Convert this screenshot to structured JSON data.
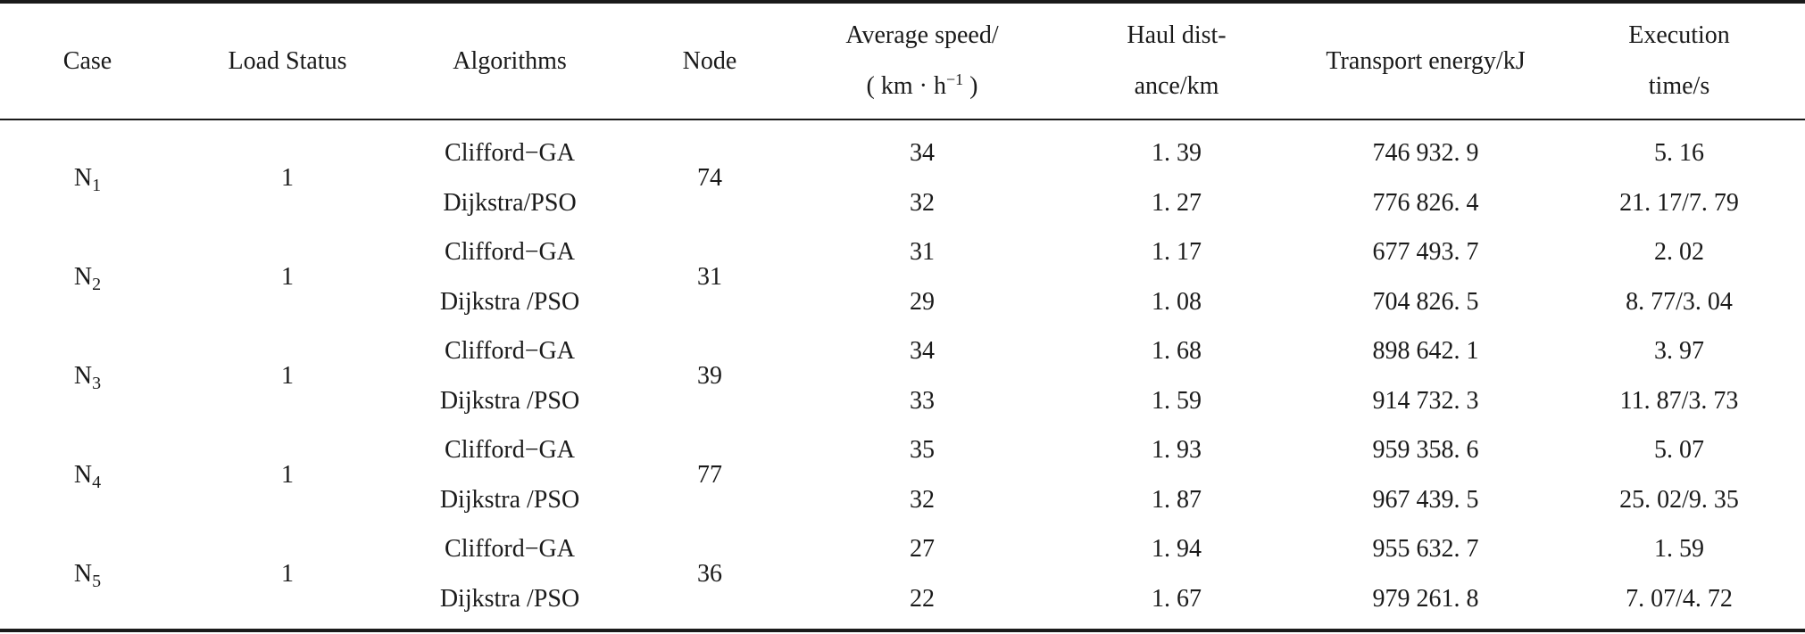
{
  "headers": {
    "case": "Case",
    "load_status": "Load Status",
    "algorithms": "Algorithms",
    "node": "Node",
    "avg_speed_line1": "Average speed/",
    "avg_speed_line2_pre": "( km · h",
    "avg_speed_line2_sup": "−1",
    "avg_speed_line2_post": " )",
    "haul_line1": "Haul dist-",
    "haul_line2": "ance/km",
    "energy": "Transport energy/kJ",
    "exec_line1": "Execution",
    "exec_line2": "time/s"
  },
  "rows": [
    {
      "case_letter": "N",
      "case_sub": "1",
      "load": "1",
      "node": "74",
      "a": {
        "algorithm": "Clifford−GA",
        "speed": "34",
        "haul": "1. 39",
        "energy": "746 932. 9",
        "time": "5. 16"
      },
      "b": {
        "algorithm": "Dijkstra/PSO",
        "speed": "32",
        "haul": "1. 27",
        "energy": "776 826. 4",
        "time": "21. 17/7. 79"
      }
    },
    {
      "case_letter": "N",
      "case_sub": "2",
      "load": "1",
      "node": "31",
      "a": {
        "algorithm": "Clifford−GA",
        "speed": "31",
        "haul": "1. 17",
        "energy": "677 493. 7",
        "time": "2. 02"
      },
      "b": {
        "algorithm": "Dijkstra /PSO",
        "speed": "29",
        "haul": "1. 08",
        "energy": "704 826. 5",
        "time": "8. 77/3. 04"
      }
    },
    {
      "case_letter": "N",
      "case_sub": "3",
      "load": "1",
      "node": "39",
      "a": {
        "algorithm": "Clifford−GA",
        "speed": "34",
        "haul": "1. 68",
        "energy": "898 642. 1",
        "time": "3. 97"
      },
      "b": {
        "algorithm": "Dijkstra /PSO",
        "speed": "33",
        "haul": "1. 59",
        "energy": "914 732. 3",
        "time": "11. 87/3. 73"
      }
    },
    {
      "case_letter": "N",
      "case_sub": "4",
      "load": "1",
      "node": "77",
      "a": {
        "algorithm": "Clifford−GA",
        "speed": "35",
        "haul": "1. 93",
        "energy": "959 358. 6",
        "time": "5. 07"
      },
      "b": {
        "algorithm": "Dijkstra /PSO",
        "speed": "32",
        "haul": "1. 87",
        "energy": "967 439. 5",
        "time": "25. 02/9. 35"
      }
    },
    {
      "case_letter": "N",
      "case_sub": "5",
      "load": "1",
      "node": "36",
      "a": {
        "algorithm": "Clifford−GA",
        "speed": "27",
        "haul": "1. 94",
        "energy": "955 632. 7",
        "time": "1. 59"
      },
      "b": {
        "algorithm": "Dijkstra /PSO",
        "speed": "22",
        "haul": "1. 67",
        "energy": "979 261. 8",
        "time": "7. 07/4. 72"
      }
    }
  ]
}
